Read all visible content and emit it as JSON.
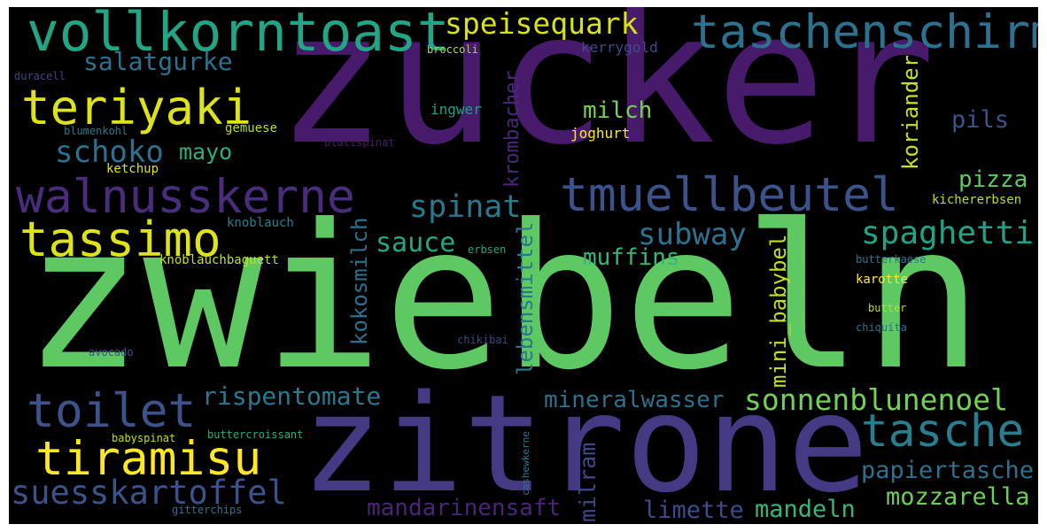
{
  "palette": {
    "background": "#000000",
    "dark_purple": "#481a6c",
    "indigo": "#3e4a89",
    "slate_blue": "#31688e",
    "teal": "#26828e",
    "sea_green": "#1f9e89",
    "green": "#35b779",
    "light_green": "#6ece58",
    "yellow_green": "#b5de2b",
    "yellow": "#fde725"
  },
  "words": [
    {
      "text": "zucker",
      "color": "#481a6c"
    },
    {
      "text": "zwiebeln",
      "color": "#5ec962"
    },
    {
      "text": "zitrone",
      "color": "#443983"
    },
    {
      "text": "vollkorntoast",
      "color": "#21a585"
    },
    {
      "text": "taschenschirm",
      "color": "#2c728e"
    },
    {
      "text": "speisequark",
      "color": "#d8e219"
    },
    {
      "text": "teriyaki",
      "color": "#dde318"
    },
    {
      "text": "salatgurke",
      "color": "#2c718e"
    },
    {
      "text": "walnusskerne",
      "color": "#472d7b"
    },
    {
      "text": "tmuellbeutel",
      "color": "#3b528b"
    },
    {
      "text": "tassimo",
      "color": "#dde318"
    },
    {
      "text": "spinat",
      "color": "#2a788e"
    },
    {
      "text": "schoko",
      "color": "#2c718e"
    },
    {
      "text": "mayo",
      "color": "#29af7f"
    },
    {
      "text": "milch",
      "color": "#7ad151"
    },
    {
      "text": "pils",
      "color": "#3b528b"
    },
    {
      "text": "pizza",
      "color": "#5ec962"
    },
    {
      "text": "subway",
      "color": "#2c728e"
    },
    {
      "text": "spaghetti",
      "color": "#20a386"
    },
    {
      "text": "sauce",
      "color": "#22a884"
    },
    {
      "text": "muffins",
      "color": "#35b779"
    },
    {
      "text": "toilet",
      "color": "#3b528b"
    },
    {
      "text": "tasche",
      "color": "#287d8e"
    },
    {
      "text": "tiramisu",
      "color": "#fde725"
    },
    {
      "text": "rispentomate",
      "color": "#2a788e"
    },
    {
      "text": "mineralwasser",
      "color": "#2c718e"
    },
    {
      "text": "sonnenblunenoel",
      "color": "#73d056"
    },
    {
      "text": "papiertasche",
      "color": "#2d708e"
    },
    {
      "text": "suesskartoffel",
      "color": "#3b528b"
    },
    {
      "text": "mozzarella",
      "color": "#6ece58"
    },
    {
      "text": "mandarinensaft",
      "color": "#482576"
    },
    {
      "text": "limette",
      "color": "#3e4a89"
    },
    {
      "text": "mandeln",
      "color": "#35b779"
    },
    {
      "text": "krombacher",
      "color": "#482878"
    },
    {
      "text": "kokosmilch",
      "color": "#2c718e"
    },
    {
      "text": "lebensmittel",
      "color": "#2a788e"
    },
    {
      "text": "mini_babybel",
      "color": "#c2df23"
    },
    {
      "text": "koriander",
      "color": "#c8e020"
    },
    {
      "text": "milram",
      "color": "#3f4889"
    },
    {
      "text": "broccoli",
      "color": "#a8db34"
    },
    {
      "text": "kerrygold",
      "color": "#3e4a89"
    },
    {
      "text": "duracell",
      "color": "#404688"
    },
    {
      "text": "ingwer",
      "color": "#1fa088"
    },
    {
      "text": "blumenkohl",
      "color": "#2a788e"
    },
    {
      "text": "gemuese",
      "color": "#b5de2b"
    },
    {
      "text": "blattspinat",
      "color": "#481a6c"
    },
    {
      "text": "joghurt",
      "color": "#fde725"
    },
    {
      "text": "ketchup",
      "color": "#dde318"
    },
    {
      "text": "kichererbsen",
      "color": "#b5de2b"
    },
    {
      "text": "knoblauch",
      "color": "#277f8e"
    },
    {
      "text": "knoblauchbaguett",
      "color": "#c2df23"
    },
    {
      "text": "erbsen",
      "color": "#22a884"
    },
    {
      "text": "butterkaese",
      "color": "#2a788e"
    },
    {
      "text": "karotte",
      "color": "#fde725"
    },
    {
      "text": "butter",
      "color": "#b5de2b"
    },
    {
      "text": "chiquita",
      "color": "#2c718e"
    },
    {
      "text": "avocado",
      "color": "#3b528b"
    },
    {
      "text": "chikibai",
      "color": "#414487"
    },
    {
      "text": "babyspinat",
      "color": "#c2df23"
    },
    {
      "text": "buttercroissant",
      "color": "#29af7f"
    },
    {
      "text": "cashewkerne",
      "color": "#2a788e"
    },
    {
      "text": "gitterchips",
      "color": "#2c718e"
    }
  ]
}
